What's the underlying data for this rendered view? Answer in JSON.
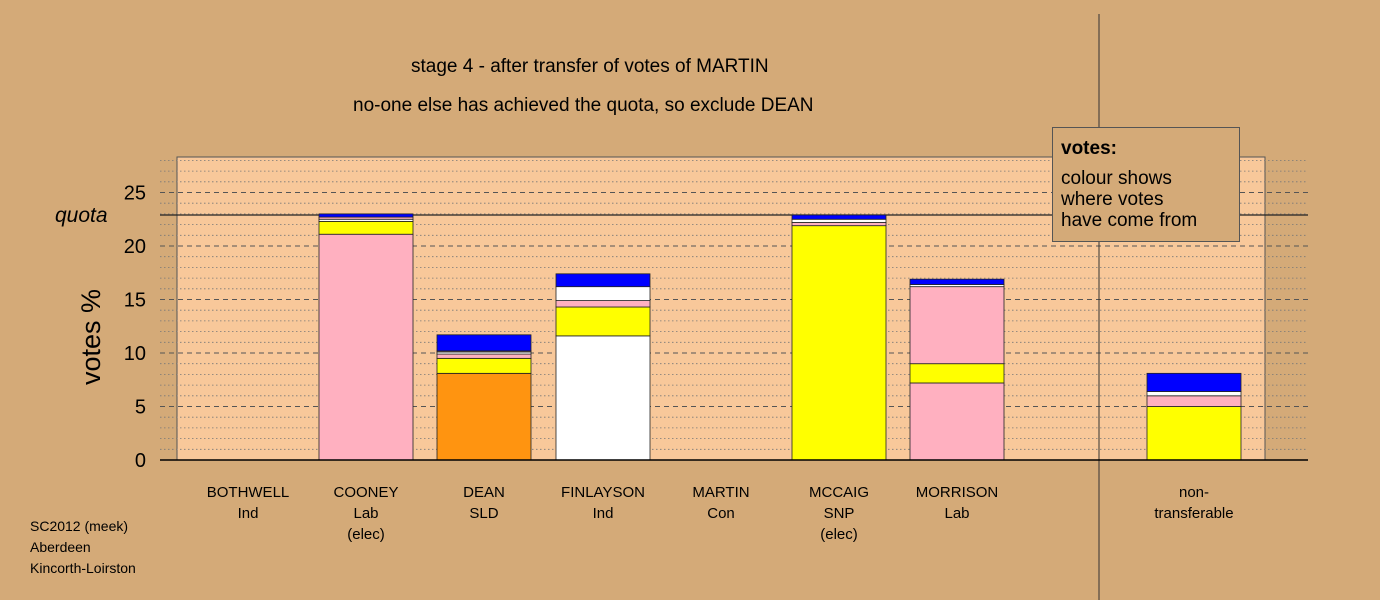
{
  "title": {
    "line1": "stage 4 - after transfer of votes of MARTIN",
    "line2": "no-one else has achieved the quota, so exclude DEAN"
  },
  "legend": {
    "heading": "votes:",
    "line1": "colour shows",
    "line2": "where votes",
    "line3": "have come from"
  },
  "credit": {
    "line1": "SC2012 (meek)",
    "line2": "Aberdeen",
    "line3": "Kincorth-Loirston"
  },
  "colors": {
    "background": "#d4aa78",
    "plot_background": "#f8c89a",
    "lab": "#ffb0c0",
    "snp": "#ffff00",
    "sld": "#ff9410",
    "ind": "#ffffff",
    "con": "#0000ff"
  },
  "chart_data": {
    "type": "bar",
    "stacked": true,
    "ylabel": "votes %",
    "ylim": [
      0,
      28
    ],
    "yticks": [
      0,
      5,
      10,
      15,
      20,
      25
    ],
    "quota": 22.9,
    "quota_label": "quota",
    "grid": true,
    "categories": [
      {
        "name": "BOTHWELL",
        "party": "Ind",
        "note": ""
      },
      {
        "name": "COONEY",
        "party": "Lab",
        "note": "(elec)"
      },
      {
        "name": "DEAN",
        "party": "SLD",
        "note": ""
      },
      {
        "name": "FINLAYSON",
        "party": "Ind",
        "note": ""
      },
      {
        "name": "MARTIN",
        "party": "Con",
        "note": ""
      },
      {
        "name": "MCCAIG",
        "party": "SNP",
        "note": "(elec)"
      },
      {
        "name": "MORRISON",
        "party": "Lab",
        "note": ""
      },
      {
        "name": "non-",
        "party": "transferable",
        "note": ""
      }
    ],
    "bars": [
      [],
      [
        {
          "source": "lab",
          "value": 21.1
        },
        {
          "source": "snp",
          "value": 1.2
        },
        {
          "source": "ind",
          "value": 0.2
        },
        {
          "source": "lab",
          "value": 0.2
        },
        {
          "source": "con",
          "value": 0.3
        }
      ],
      [
        {
          "source": "sld",
          "value": 8.1
        },
        {
          "source": "snp",
          "value": 1.4
        },
        {
          "source": "lab",
          "value": 0.4
        },
        {
          "source": "ind",
          "value": 0.2
        },
        {
          "source": "lab",
          "value": 0.1
        },
        {
          "source": "con",
          "value": 1.5
        }
      ],
      [
        {
          "source": "ind",
          "value": 11.6
        },
        {
          "source": "snp",
          "value": 2.7
        },
        {
          "source": "lab",
          "value": 0.6
        },
        {
          "source": "ind",
          "value": 1.3
        },
        {
          "source": "con",
          "value": 1.2
        }
      ],
      [],
      [
        {
          "source": "snp",
          "value": 21.9
        },
        {
          "source": "lab",
          "value": 0.3
        },
        {
          "source": "ind",
          "value": 0.3
        },
        {
          "source": "con",
          "value": 0.4
        }
      ],
      [
        {
          "source": "lab",
          "value": 7.2
        },
        {
          "source": "snp",
          "value": 1.8
        },
        {
          "source": "lab",
          "value": 7.2
        },
        {
          "source": "ind",
          "value": 0.2
        },
        {
          "source": "con",
          "value": 0.5
        }
      ],
      [
        {
          "source": "snp",
          "value": 5.0
        },
        {
          "source": "lab",
          "value": 1.0
        },
        {
          "source": "ind",
          "value": 0.4
        },
        {
          "source": "con",
          "value": 1.7
        }
      ]
    ]
  }
}
